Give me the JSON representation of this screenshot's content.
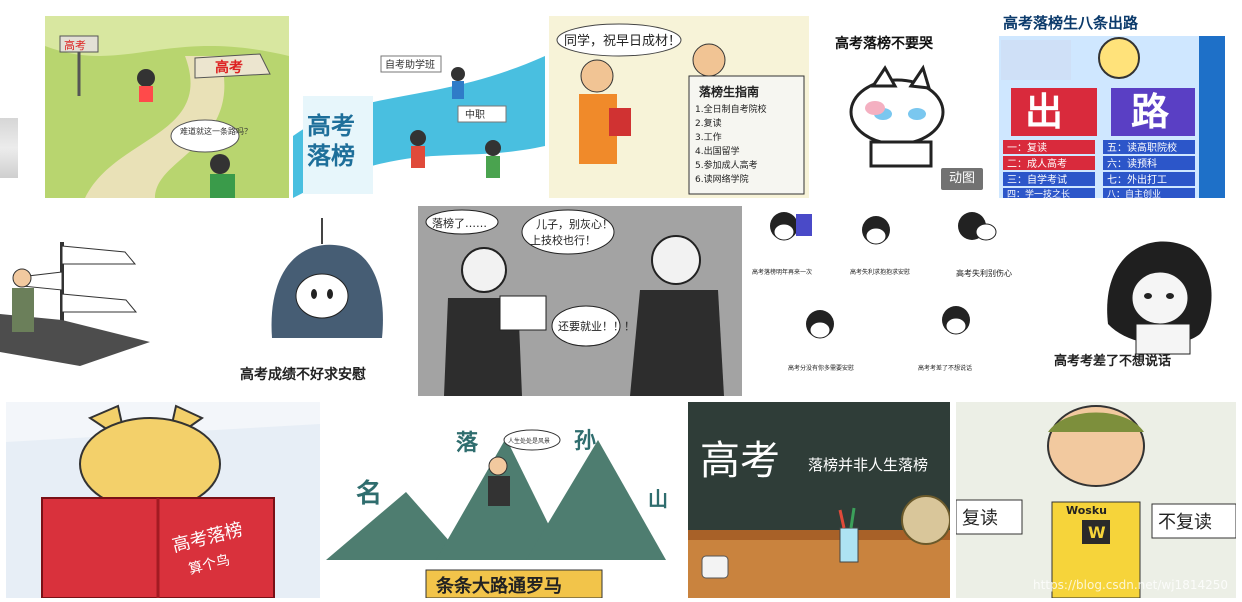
{
  "results": [
    {
      "id": "r1",
      "texts": [
        "高考",
        "高考",
        "难道就这一条路吗？"
      ]
    },
    {
      "id": "r2",
      "texts": [
        "高考",
        "落榜",
        "自考助学班",
        "中职"
      ]
    },
    {
      "id": "r3",
      "texts": [
        "同学，祝早日成材！",
        "落榜生指南",
        "1.全日制自考院校",
        "2.复读",
        "3.工作",
        "4.出国留学",
        "5.参加成人高考",
        "6.读网络学院"
      ]
    },
    {
      "id": "r4",
      "texts": [
        "高考落榜不要哭",
        "动图"
      ]
    },
    {
      "id": "r5",
      "texts": [
        "高考落榜生八条出路",
        "出",
        "路",
        "一：复读",
        "二：成人高考",
        "三：自学考试",
        "四：学一技之长",
        "五：读高职院校",
        "六：读预科",
        "七：外出打工",
        "八：自主创业"
      ]
    },
    {
      "id": "r6",
      "texts": []
    },
    {
      "id": "r7",
      "texts": [
        "高考成绩不好求安慰"
      ]
    },
    {
      "id": "r8",
      "texts": [
        "落榜了……",
        "儿子，别灰心！",
        "上技校也行！",
        "还要就业！！！"
      ]
    },
    {
      "id": "r9",
      "texts": [
        "高考落榜明年再来一次",
        "高考失利求抱抱求安慰",
        "高考失利别伤心",
        "高考分没有你多需要安慰",
        "高考考差了不想说话"
      ]
    },
    {
      "id": "r10",
      "texts": [
        "高考考差了不想说话"
      ]
    },
    {
      "id": "r11",
      "texts": [
        "高考落榜",
        "算个鸟"
      ]
    },
    {
      "id": "r12",
      "texts": [
        "名",
        "落",
        "孙",
        "山",
        "人生处处是风景",
        "条条大路通罗马"
      ]
    },
    {
      "id": "r13",
      "texts": [
        "高考",
        "落榜并非人生落榜"
      ]
    },
    {
      "id": "r14",
      "texts": [
        "复读",
        "不复读",
        "Wosku",
        "W"
      ]
    },
    {
      "id": "r15",
      "texts": [
        "https://blog.csdn.net/wj1814250"
      ]
    }
  ]
}
